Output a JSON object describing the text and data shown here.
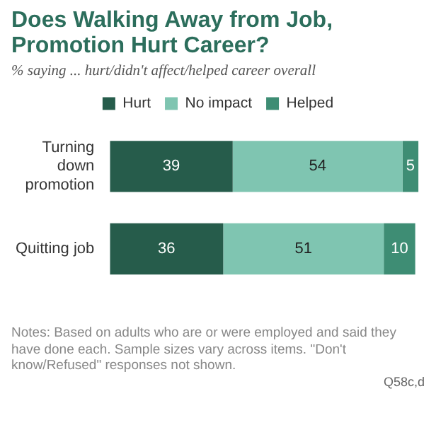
{
  "chart_data": {
    "type": "bar",
    "orientation": "horizontal",
    "stacked": true,
    "title": "Does Walking Away from Job, Promotion Hurt Career?",
    "subtitle": "% saying ... hurt/didn't affect/helped career overall",
    "categories": [
      "Turning down promotion",
      "Quitting job"
    ],
    "series": [
      {
        "name": "Hurt",
        "color": "#265c4b",
        "values": [
          39,
          36
        ]
      },
      {
        "name": "No impact",
        "color": "#7fc5b1",
        "values": [
          54,
          51
        ]
      },
      {
        "name": "Helped",
        "color": "#3e8d74",
        "values": [
          5,
          10
        ]
      }
    ],
    "data_labels": true,
    "legend": "top",
    "tick_labels": "y",
    "annotations": [
      "Notes: Based on adults who are or were employed and said they have done each. Sample sizes vary across items. \"Don't know/Refused\" responses not shown.",
      "Q58c,d"
    ]
  }
}
